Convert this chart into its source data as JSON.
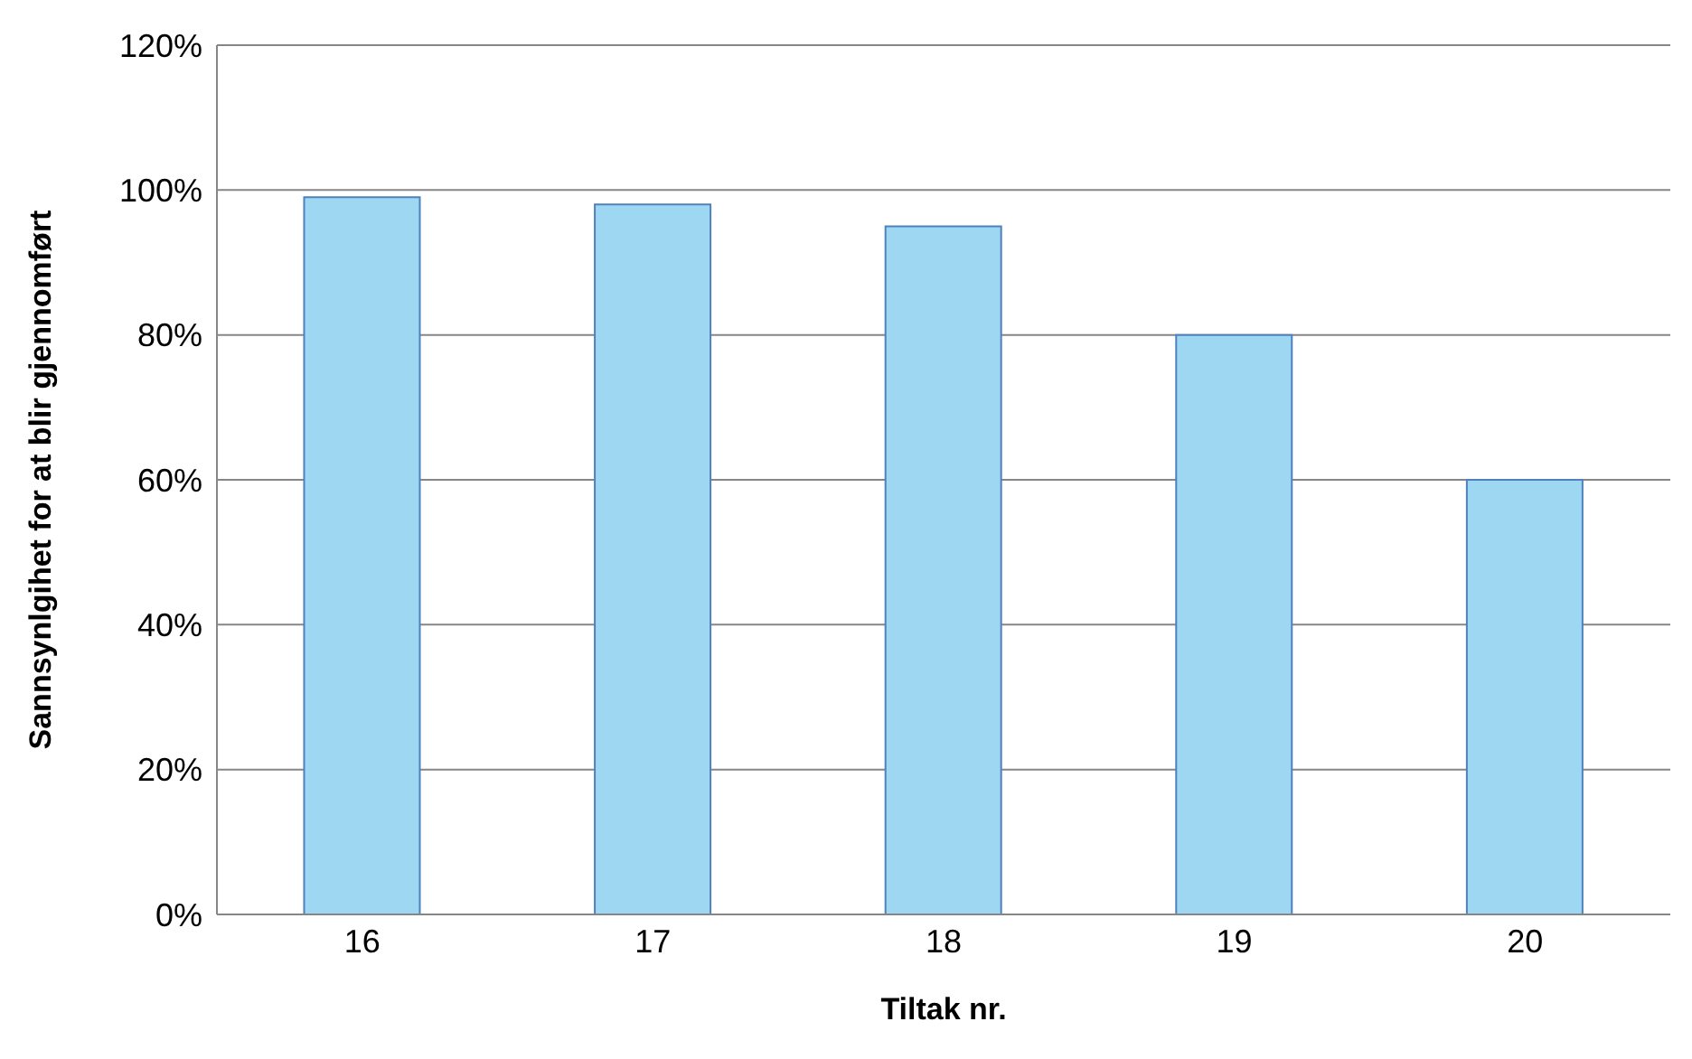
{
  "chart_data": {
    "type": "bar",
    "xlabel": "Tiltak nr.",
    "ylabel": "Sannsynlgihet for at blir gjennomført",
    "categories": [
      "16",
      "17",
      "18",
      "19",
      "20"
    ],
    "values": [
      99,
      98,
      95,
      80,
      60
    ],
    "color": "#9dd7f1",
    "ylim": [
      0,
      120
    ],
    "yticks": [
      {
        "value": 0,
        "label": "0%"
      },
      {
        "value": 20,
        "label": "20%"
      },
      {
        "value": 40,
        "label": "40%"
      },
      {
        "value": 60,
        "label": "60%"
      },
      {
        "value": 80,
        "label": "80%"
      },
      {
        "value": 100,
        "label": "100%"
      },
      {
        "value": 120,
        "label": "120%"
      }
    ],
    "grid": "y"
  }
}
